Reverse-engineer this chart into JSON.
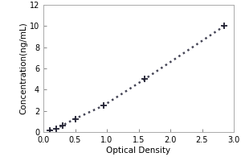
{
  "x_data": [
    0.1,
    0.2,
    0.3,
    0.5,
    0.95,
    1.6,
    2.85
  ],
  "y_data": [
    0.15,
    0.3,
    0.625,
    1.25,
    2.5,
    5.0,
    10.0
  ],
  "xlabel": "Optical Density",
  "ylabel": "Concentration(ng/mL)",
  "xlim": [
    0,
    3.0
  ],
  "ylim": [
    0,
    12
  ],
  "xticks": [
    0,
    0.5,
    1,
    1.5,
    2,
    2.5,
    3
  ],
  "yticks": [
    0,
    2,
    4,
    6,
    8,
    10,
    12
  ],
  "line_color": "#444455",
  "marker": "+",
  "marker_size": 6,
  "line_style": "dotted",
  "line_width": 1.8,
  "background_color": "#ffffff",
  "marker_color": "#222233",
  "tick_fontsize": 7,
  "label_fontsize": 7.5,
  "spine_color": "#aaaaaa",
  "spine_linewidth": 0.7
}
